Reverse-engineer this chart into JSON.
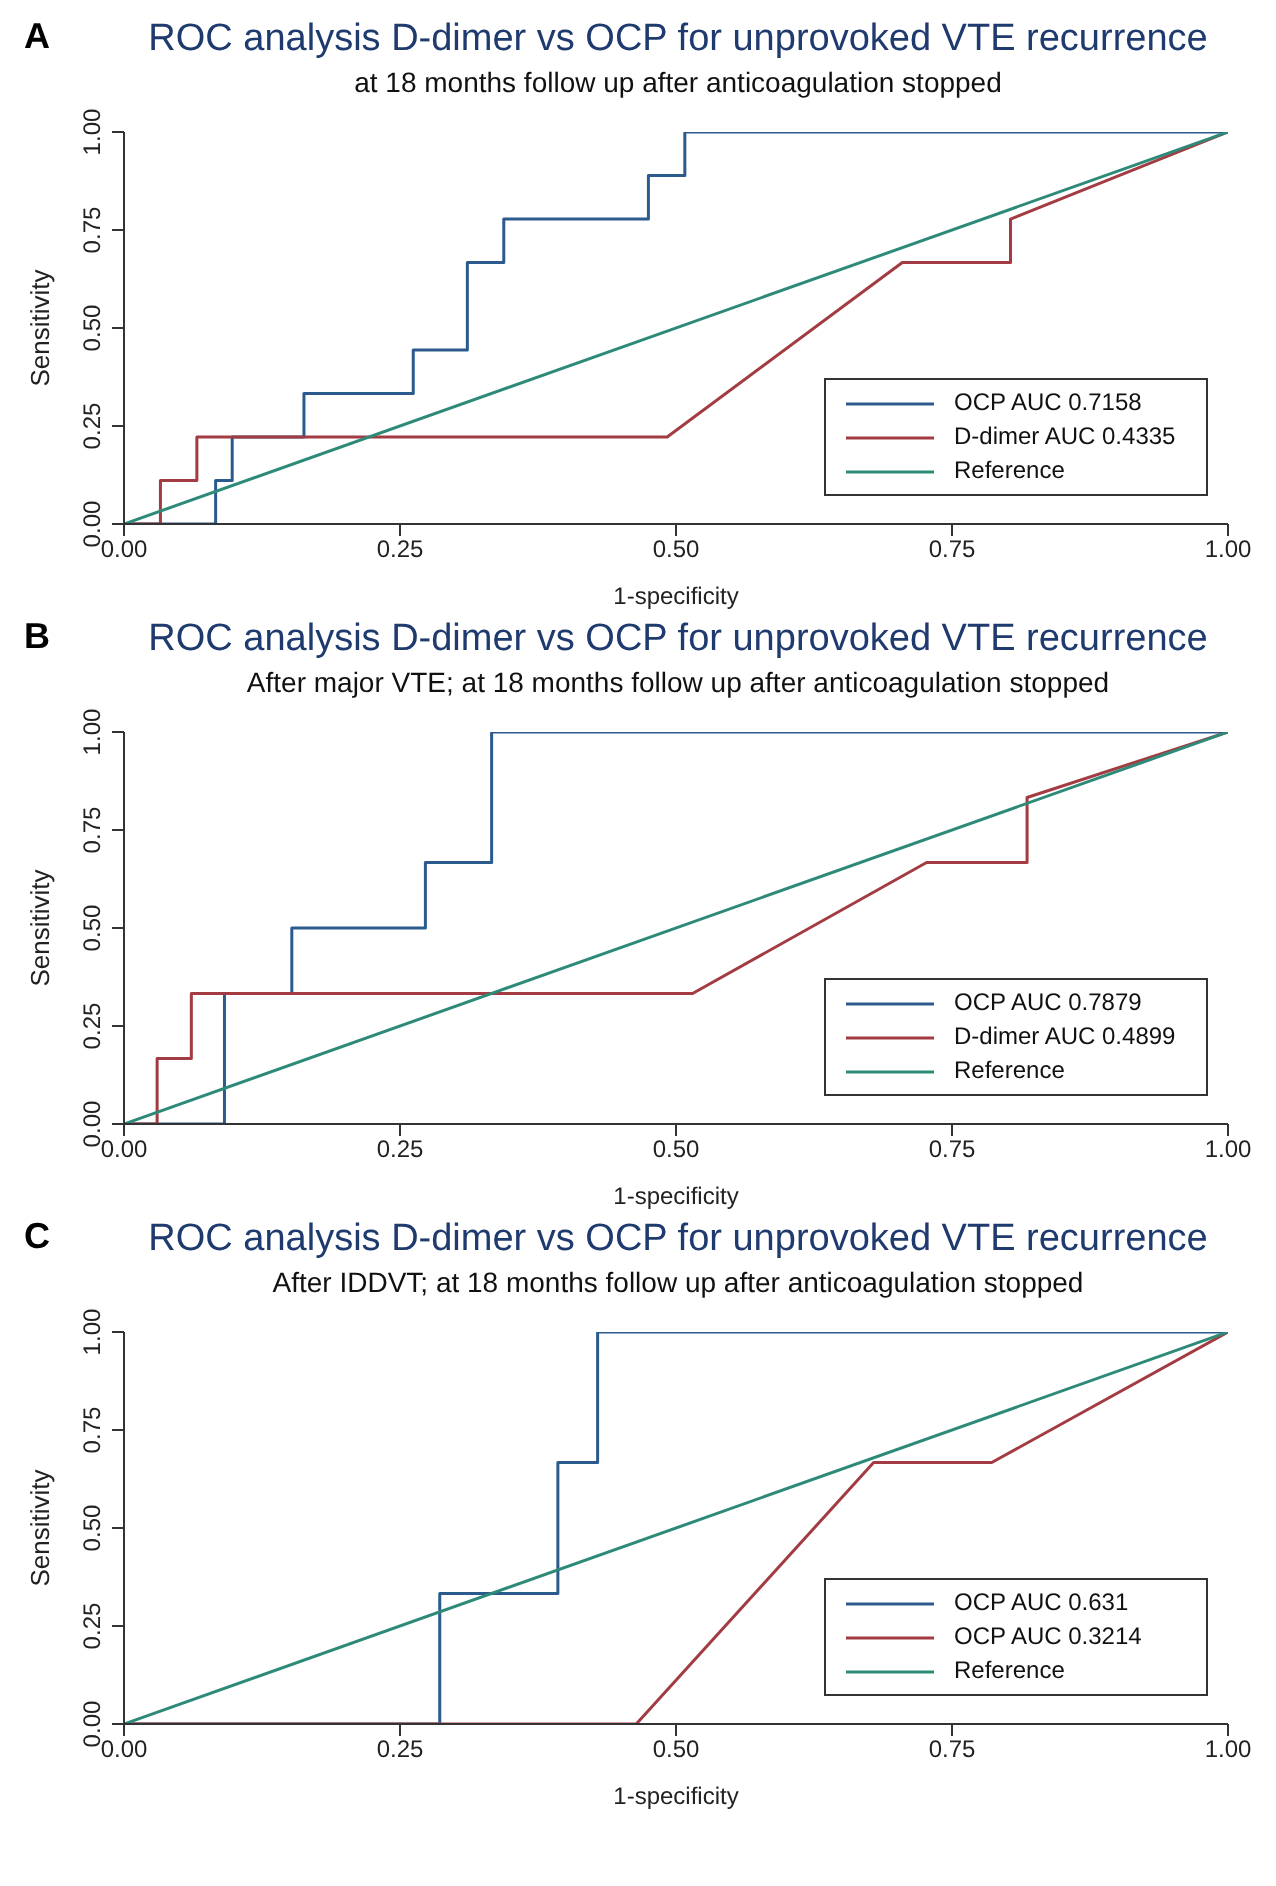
{
  "chart_data": [
    {
      "type": "line",
      "annotations": [
        "A"
      ],
      "title": "ROC analysis D-dimer vs OCP for unprovoked VTE recurrence",
      "subtitle": "at 18 months follow up after anticoagulation stopped",
      "xlabel": "1-specificity",
      "ylabel": "Sensitivity",
      "xlim": [
        0,
        1
      ],
      "ylim": [
        0,
        1
      ],
      "xticks": [
        {
          "value": 0,
          "label": "0.00"
        },
        {
          "value": 0.25,
          "label": "0.25"
        },
        {
          "value": 0.5,
          "label": "0.50"
        },
        {
          "value": 0.75,
          "label": "0.75"
        },
        {
          "value": 1,
          "label": "1.00"
        }
      ],
      "yticks": [
        {
          "value": 0,
          "label": "0.00"
        },
        {
          "value": 0.25,
          "label": "0.25"
        },
        {
          "value": 0.5,
          "label": "0.50"
        },
        {
          "value": 0.75,
          "label": "0.75"
        },
        {
          "value": 1,
          "label": "1.00"
        }
      ],
      "grid": false,
      "legend": "bottom right",
      "series": [
        {
          "name": "OCP AUC 0.7158",
          "color": "#2b5b8c",
          "x": [
            0,
            0.083,
            0.083,
            0.098,
            0.098,
            0.163,
            0.163,
            0.262,
            0.262,
            0.311,
            0.311,
            0.344,
            0.344,
            0.475,
            0.475,
            0.508,
            0.508,
            1
          ],
          "values": [
            0,
            0,
            0.111,
            0.111,
            0.222,
            0.222,
            0.333,
            0.333,
            0.444,
            0.444,
            0.667,
            0.667,
            0.778,
            0.778,
            0.889,
            0.889,
            1,
            1
          ]
        },
        {
          "name": "D-dimer AUC 0.4335",
          "color": "#a33c42",
          "x": [
            0,
            0.033,
            0.033,
            0.066,
            0.066,
            0.492,
            0.705,
            0.803,
            0.803,
            1
          ],
          "values": [
            0,
            0,
            0.111,
            0.111,
            0.222,
            0.222,
            0.667,
            0.667,
            0.778,
            1
          ]
        },
        {
          "name": "Reference",
          "color": "#2e8a78",
          "x": [
            0,
            1
          ],
          "values": [
            0,
            1
          ]
        }
      ]
    },
    {
      "type": "line",
      "annotations": [
        "B"
      ],
      "title": "ROC analysis D-dimer vs OCP for unprovoked VTE recurrence",
      "subtitle": "After major VTE; at 18 months follow up after anticoagulation stopped",
      "xlabel": "1-specificity",
      "ylabel": "Sensitivity",
      "xlim": [
        0,
        1
      ],
      "ylim": [
        0,
        1
      ],
      "xticks": [
        {
          "value": 0,
          "label": "0.00"
        },
        {
          "value": 0.25,
          "label": "0.25"
        },
        {
          "value": 0.5,
          "label": "0.50"
        },
        {
          "value": 0.75,
          "label": "0.75"
        },
        {
          "value": 1,
          "label": "1.00"
        }
      ],
      "yticks": [
        {
          "value": 0,
          "label": "0.00"
        },
        {
          "value": 0.25,
          "label": "0.25"
        },
        {
          "value": 0.5,
          "label": "0.50"
        },
        {
          "value": 0.75,
          "label": "0.75"
        },
        {
          "value": 1,
          "label": "1.00"
        }
      ],
      "grid": false,
      "legend": "bottom right",
      "series": [
        {
          "name": "OCP AUC 0.7879",
          "color": "#2b5b8c",
          "x": [
            0,
            0.091,
            0.091,
            0.152,
            0.152,
            0.273,
            0.273,
            0.333,
            0.333,
            1
          ],
          "values": [
            0,
            0,
            0.333,
            0.333,
            0.5,
            0.5,
            0.667,
            0.667,
            1,
            1
          ]
        },
        {
          "name": "D-dimer AUC 0.4899",
          "color": "#a33c42",
          "x": [
            0,
            0.03,
            0.03,
            0.061,
            0.061,
            0.515,
            0.727,
            0.818,
            0.818,
            1
          ],
          "values": [
            0,
            0,
            0.167,
            0.167,
            0.333,
            0.333,
            0.667,
            0.667,
            0.833,
            1
          ]
        },
        {
          "name": "Reference",
          "color": "#2e8a78",
          "x": [
            0,
            1
          ],
          "values": [
            0,
            1
          ]
        }
      ]
    },
    {
      "type": "line",
      "annotations": [
        "C"
      ],
      "title": "ROC analysis D-dimer vs OCP for unprovoked VTE recurrence",
      "subtitle": "After IDDVT; at 18 months follow up after anticoagulation stopped",
      "xlabel": "1-specificity",
      "ylabel": "Sensitivity",
      "xlim": [
        0,
        1
      ],
      "ylim": [
        0,
        1
      ],
      "xticks": [
        {
          "value": 0,
          "label": "0.00"
        },
        {
          "value": 0.25,
          "label": "0.25"
        },
        {
          "value": 0.5,
          "label": "0.50"
        },
        {
          "value": 0.75,
          "label": "0.75"
        },
        {
          "value": 1,
          "label": "1.00"
        }
      ],
      "yticks": [
        {
          "value": 0,
          "label": "0.00"
        },
        {
          "value": 0.25,
          "label": "0.25"
        },
        {
          "value": 0.5,
          "label": "0.50"
        },
        {
          "value": 0.75,
          "label": "0.75"
        },
        {
          "value": 1,
          "label": "1.00"
        }
      ],
      "grid": false,
      "legend": "bottom right",
      "series": [
        {
          "name": "OCP AUC 0.631",
          "color": "#2b5b8c",
          "x": [
            0,
            0.286,
            0.286,
            0.393,
            0.393,
            0.429,
            0.429,
            1
          ],
          "values": [
            0,
            0,
            0.333,
            0.333,
            0.667,
            0.667,
            1,
            1
          ]
        },
        {
          "name": "OCP AUC 0.3214",
          "color": "#a33c42",
          "x": [
            0,
            0.464,
            0.679,
            0.786,
            1
          ],
          "values": [
            0,
            0,
            0.667,
            0.667,
            1
          ]
        },
        {
          "name": "Reference",
          "color": "#2e8a78",
          "x": [
            0,
            1
          ],
          "values": [
            0,
            1
          ]
        }
      ]
    }
  ]
}
